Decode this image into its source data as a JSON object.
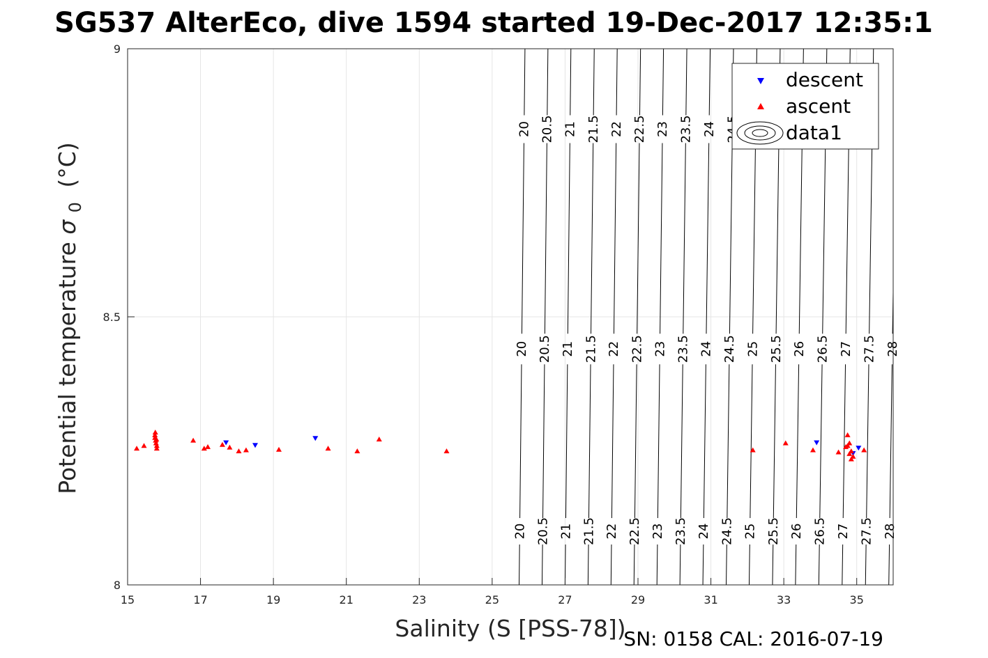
{
  "colors": {
    "descent": "#0000ff",
    "ascent": "#ff0000",
    "grid": "#e5e5e5",
    "axis": "#262626"
  },
  "footer": "SN: 0158  CAL: 2016-07-19",
  "chart_data": {
    "type": "scatter",
    "title": "SG537 AlterEco, dive 1594 started 19-Dec-2017 12:35:1",
    "xlabel": "Salinity (S [PSS-78])",
    "ylabel": "Potential temperature",
    "ylabel_symbol": "σ",
    "ylabel_subscript": "0",
    "ylabel_unit": "(°C)",
    "xlim": [
      15,
      36
    ],
    "ylim": [
      8,
      9
    ],
    "xticks": [
      15,
      17,
      19,
      21,
      23,
      25,
      27,
      29,
      31,
      33,
      35
    ],
    "yticks": [
      8,
      8.5,
      9
    ],
    "grid": true,
    "legend_position": "top-right",
    "legend": [
      "descent",
      "ascent",
      "data1"
    ],
    "series": [
      {
        "name": "descent",
        "marker": "triangle-down",
        "x": [
          17.7,
          18.5,
          20.15,
          33.9,
          34.9,
          35.05
        ],
        "y": [
          8.265,
          8.26,
          8.273,
          8.265,
          8.245,
          8.255
        ]
      },
      {
        "name": "ascent",
        "marker": "triangle-up",
        "x": [
          15.25,
          15.45,
          15.75,
          15.75,
          15.77,
          15.78,
          15.8,
          15.8,
          15.76,
          15.79,
          16.8,
          17.1,
          17.2,
          17.6,
          17.8,
          18.05,
          18.25,
          19.15,
          20.5,
          21.3,
          21.9,
          23.75,
          32.15,
          33.05,
          33.8,
          34.5,
          34.7,
          34.75,
          34.8,
          34.85,
          34.8,
          34.9,
          34.85,
          34.75,
          35.2
        ],
        "y": [
          8.255,
          8.26,
          8.28,
          8.275,
          8.27,
          8.265,
          8.26,
          8.255,
          8.285,
          8.272,
          8.27,
          8.255,
          8.258,
          8.262,
          8.257,
          8.25,
          8.252,
          8.253,
          8.255,
          8.25,
          8.272,
          8.25,
          8.252,
          8.265,
          8.252,
          8.248,
          8.258,
          8.28,
          8.265,
          8.25,
          8.245,
          8.24,
          8.235,
          8.26,
          8.252
        ]
      },
      {
        "name": "data1",
        "type": "contour",
        "levels": [
          20,
          20.5,
          21,
          21.5,
          22,
          22.5,
          23,
          23.5,
          24,
          24.5,
          25,
          25.5,
          26,
          26.5,
          27,
          27.5,
          28
        ],
        "salinity_at_8": [
          25.74,
          26.37,
          27.0,
          27.63,
          28.26,
          28.89,
          29.52,
          30.15,
          30.78,
          31.42,
          32.05,
          32.69,
          33.32,
          33.96,
          34.6,
          35.24,
          35.88
        ],
        "salinity_at_9": [
          25.9,
          26.53,
          27.16,
          27.8,
          28.43,
          29.07,
          29.7,
          30.34,
          30.98,
          31.62,
          32.26,
          32.9,
          33.54,
          34.18,
          34.82,
          35.46,
          36.1
        ]
      }
    ]
  }
}
